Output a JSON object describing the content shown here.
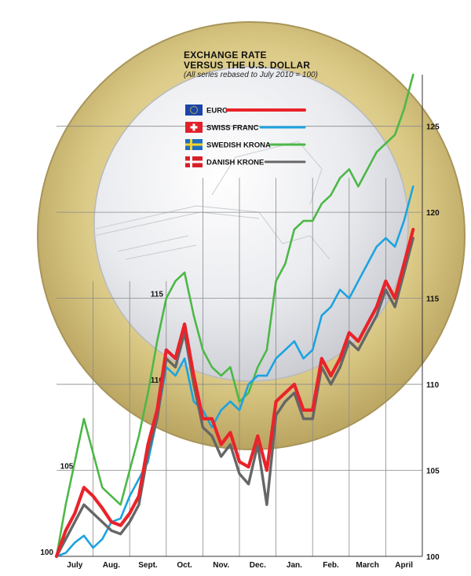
{
  "chart_data": {
    "type": "line",
    "title_line1": "EXCHANGE RATE",
    "title_line2": "VERSUS THE U.S. DOLLAR",
    "subtitle": "(All series rebased to July 2010 = 100)",
    "x_months": [
      "July",
      "Aug.",
      "Sept.",
      "Oct.",
      "Nov.",
      "Dec.",
      "Jan.",
      "Feb.",
      "March",
      "April"
    ],
    "x": [
      0,
      0.25,
      0.5,
      0.75,
      1,
      1.25,
      1.5,
      1.75,
      2,
      2.25,
      2.5,
      2.75,
      3,
      3.25,
      3.5,
      3.75,
      4,
      4.25,
      4.5,
      4.75,
      5,
      5.25,
      5.5,
      5.75,
      6,
      6.25,
      6.5,
      6.75,
      7,
      7.25,
      7.5,
      7.75,
      8,
      8.25,
      8.5,
      8.75,
      9,
      9.25,
      9.5,
      9.75
    ],
    "y_ticks_left": [
      100,
      105,
      110,
      115
    ],
    "y_ticks_right": [
      100,
      105,
      110,
      115,
      120,
      125
    ],
    "ylim": [
      100,
      128
    ],
    "series": [
      {
        "name": "EURO",
        "color": "#e8242a",
        "values": [
          100,
          101.5,
          102.5,
          104,
          103.5,
          102.8,
          102.0,
          101.8,
          102.5,
          103.5,
          106.5,
          108.5,
          112.0,
          111.5,
          113.5,
          110.5,
          108.0,
          108.0,
          106.5,
          107.2,
          105.5,
          105.2,
          107.0,
          105.0,
          109.0,
          109.5,
          110.0,
          108.5,
          108.5,
          111.5,
          110.5,
          111.5,
          113.0,
          112.5,
          113.5,
          114.5,
          116.0,
          115.0,
          117.0,
          119.0
        ]
      },
      {
        "name": "SWISS FRANC",
        "color": "#1ca3e0",
        "values": [
          100,
          100.2,
          100.8,
          101.2,
          100.5,
          101.0,
          102.0,
          102.2,
          103.5,
          104.5,
          105.5,
          108.0,
          111.0,
          110.5,
          111.5,
          109.0,
          108.5,
          107.5,
          108.5,
          109.0,
          108.5,
          110.0,
          110.5,
          110.5,
          111.5,
          112.0,
          112.5,
          111.5,
          112.0,
          114.0,
          114.5,
          115.5,
          115.0,
          116.0,
          117.0,
          118.0,
          118.5,
          118.0,
          119.5,
          121.5
        ]
      },
      {
        "name": "SWEDISH KRONA",
        "color": "#4cb847",
        "values": [
          100,
          103.0,
          105.5,
          108.0,
          106.0,
          104.0,
          103.5,
          103.0,
          105.0,
          107.0,
          109.5,
          112.5,
          115.0,
          116.0,
          116.5,
          114.0,
          112.0,
          111.0,
          110.5,
          111.0,
          109.0,
          109.5,
          111.0,
          112.0,
          116.0,
          117.0,
          119.0,
          119.5,
          119.5,
          120.5,
          121.0,
          122.0,
          122.5,
          121.5,
          122.5,
          123.5,
          124.0,
          124.5,
          126.0,
          128.0
        ]
      },
      {
        "name": "DANISH KRONE",
        "color": "#666666",
        "values": [
          100,
          101.0,
          102.0,
          103.0,
          102.5,
          102.0,
          101.5,
          101.3,
          102.0,
          103.0,
          106.0,
          108.0,
          111.5,
          111.0,
          113.0,
          110.0,
          107.5,
          107.0,
          105.8,
          106.5,
          104.8,
          104.2,
          106.5,
          103.0,
          108.2,
          109.0,
          109.5,
          108.0,
          108.0,
          111.0,
          110.0,
          111.0,
          112.5,
          112.0,
          113.0,
          114.0,
          115.5,
          114.5,
          116.5,
          118.5
        ]
      }
    ],
    "legend_position": "top-center",
    "grid": true
  },
  "flags": {
    "euro": "flag-eu",
    "swiss": "flag-switzerland",
    "swedish": "flag-sweden",
    "danish": "flag-denmark"
  },
  "background": {
    "coin": "euro-coin",
    "ring_color": "#d9c886",
    "center_color": "#e8e9ec"
  }
}
